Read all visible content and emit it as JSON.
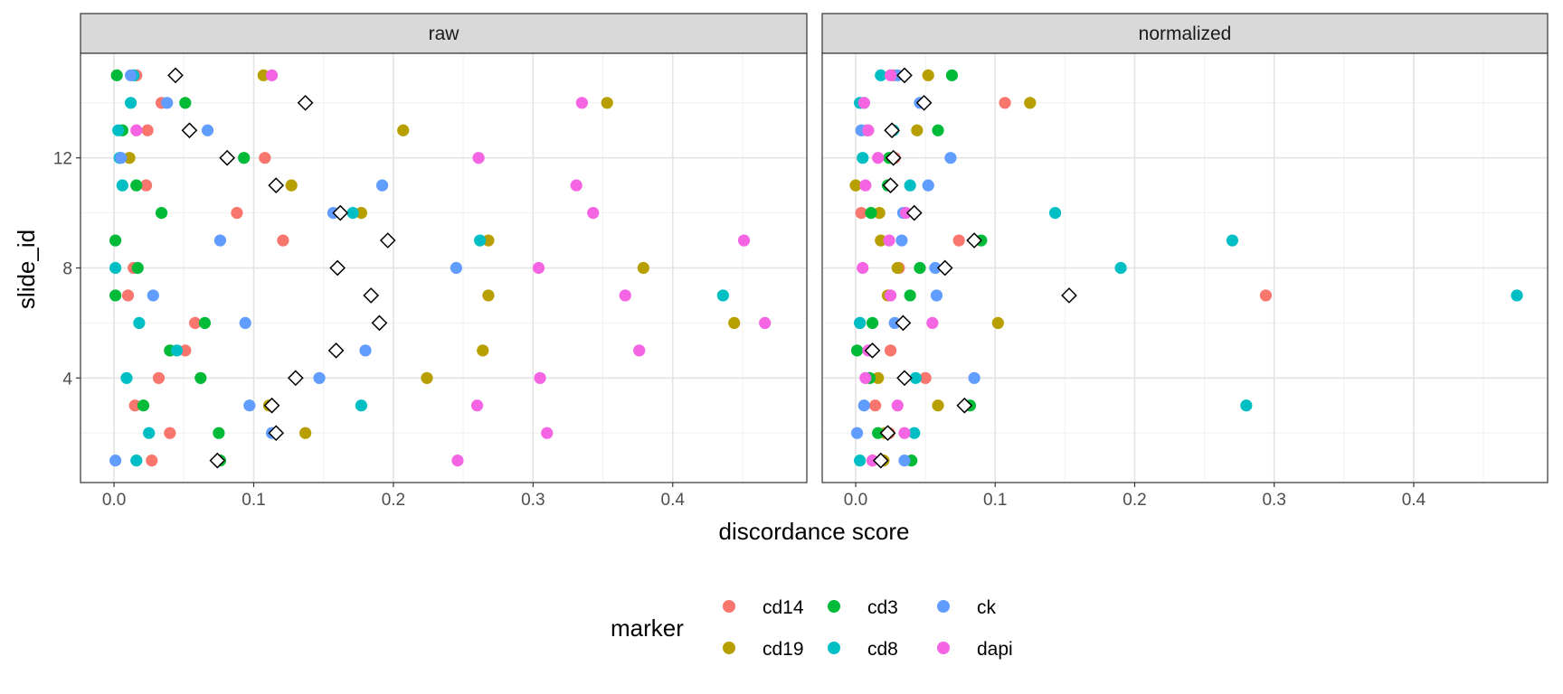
{
  "chart_data": {
    "type": "scatter",
    "facets": [
      {
        "title": "raw",
        "points": {
          "cd14": [
            [
              0.016,
              15
            ],
            [
              0.034,
              14
            ],
            [
              0.024,
              13
            ],
            [
              0.108,
              12
            ],
            [
              0.023,
              11
            ],
            [
              0.088,
              10
            ],
            [
              0.121,
              9
            ],
            [
              0.014,
              8
            ],
            [
              0.01,
              7
            ],
            [
              0.058,
              6
            ],
            [
              0.051,
              5
            ],
            [
              0.032,
              4
            ],
            [
              0.015,
              3
            ],
            [
              0.04,
              2
            ],
            [
              0.027,
              1
            ]
          ],
          "cd19": [
            [
              0.107,
              15
            ],
            [
              0.353,
              14
            ],
            [
              0.207,
              13
            ],
            [
              0.011,
              12
            ],
            [
              0.127,
              11
            ],
            [
              0.177,
              10
            ],
            [
              0.268,
              9
            ],
            [
              0.379,
              8
            ],
            [
              0.268,
              7
            ],
            [
              0.444,
              6
            ],
            [
              0.264,
              5
            ],
            [
              0.224,
              4
            ],
            [
              0.111,
              3
            ],
            [
              0.137,
              2
            ],
            [
              0.075,
              1
            ]
          ],
          "cd3": [
            [
              0.002,
              15
            ],
            [
              0.051,
              14
            ],
            [
              0.006,
              13
            ],
            [
              0.093,
              12
            ],
            [
              0.016,
              11
            ],
            [
              0.034,
              10
            ],
            [
              0.001,
              9
            ],
            [
              0.017,
              8
            ],
            [
              0.001,
              7
            ],
            [
              0.065,
              6
            ],
            [
              0.04,
              5
            ],
            [
              0.062,
              4
            ],
            [
              0.021,
              3
            ],
            [
              0.075,
              2
            ],
            [
              0.076,
              1
            ]
          ],
          "ck": [
            [
              0.012,
              15
            ],
            [
              0.038,
              14
            ],
            [
              0.067,
              13
            ],
            [
              0.005,
              12
            ],
            [
              0.192,
              11
            ],
            [
              0.157,
              10
            ],
            [
              0.076,
              9
            ],
            [
              0.245,
              8
            ],
            [
              0.028,
              7
            ],
            [
              0.094,
              6
            ],
            [
              0.18,
              5
            ],
            [
              0.147,
              4
            ],
            [
              0.097,
              3
            ],
            [
              0.113,
              2
            ],
            [
              0.001,
              1
            ]
          ],
          "cd8": [
            [
              0.014,
              15
            ],
            [
              0.012,
              14
            ],
            [
              0.003,
              13
            ],
            [
              0.004,
              12
            ],
            [
              0.006,
              11
            ],
            [
              0.171,
              10
            ],
            [
              0.262,
              9
            ],
            [
              0.001,
              8
            ],
            [
              0.436,
              7
            ],
            [
              0.018,
              6
            ],
            [
              0.045,
              5
            ],
            [
              0.009,
              4
            ],
            [
              0.177,
              3
            ],
            [
              0.025,
              2
            ],
            [
              0.016,
              1
            ]
          ],
          "dapi": [
            [
              0.113,
              15
            ],
            [
              0.335,
              14
            ],
            [
              0.016,
              13
            ],
            [
              0.261,
              12
            ],
            [
              0.331,
              11
            ],
            [
              0.343,
              10
            ],
            [
              0.451,
              9
            ],
            [
              0.304,
              8
            ],
            [
              0.366,
              7
            ],
            [
              0.466,
              6
            ],
            [
              0.376,
              5
            ],
            [
              0.305,
              4
            ],
            [
              0.26,
              3
            ],
            [
              0.31,
              2
            ],
            [
              0.246,
              1
            ]
          ],
          "summary": [
            [
              0.044,
              15
            ],
            [
              0.137,
              14
            ],
            [
              0.054,
              13
            ],
            [
              0.081,
              12
            ],
            [
              0.116,
              11
            ],
            [
              0.162,
              10
            ],
            [
              0.196,
              9
            ],
            [
              0.16,
              8
            ],
            [
              0.184,
              7
            ],
            [
              0.19,
              6
            ],
            [
              0.159,
              5
            ],
            [
              0.13,
              4
            ],
            [
              0.113,
              3
            ],
            [
              0.116,
              2
            ],
            [
              0.074,
              1
            ]
          ]
        }
      },
      {
        "title": "normalized",
        "points": {
          "cd14": [
            [
              0.027,
              15
            ],
            [
              0.107,
              14
            ],
            [
              0.008,
              13
            ],
            [
              0.028,
              12
            ],
            [
              0.025,
              11
            ],
            [
              0.004,
              10
            ],
            [
              0.074,
              9
            ],
            [
              0.031,
              8
            ],
            [
              0.294,
              7
            ],
            [
              0.003,
              6
            ],
            [
              0.025,
              5
            ],
            [
              0.05,
              4
            ],
            [
              0.014,
              3
            ],
            [
              0.024,
              2
            ],
            [
              0.012,
              1
            ]
          ],
          "cd19": [
            [
              0.052,
              15
            ],
            [
              0.125,
              14
            ],
            [
              0.044,
              13
            ],
            [
              0.026,
              12
            ],
            [
              0.0,
              11
            ],
            [
              0.017,
              10
            ],
            [
              0.018,
              9
            ],
            [
              0.03,
              8
            ],
            [
              0.023,
              7
            ],
            [
              0.102,
              6
            ],
            [
              0.01,
              5
            ],
            [
              0.016,
              4
            ],
            [
              0.059,
              3
            ],
            [
              0.021,
              2
            ],
            [
              0.02,
              1
            ]
          ],
          "cd3": [
            [
              0.069,
              15
            ],
            [
              0.006,
              14
            ],
            [
              0.059,
              13
            ],
            [
              0.024,
              12
            ],
            [
              0.023,
              11
            ],
            [
              0.011,
              10
            ],
            [
              0.09,
              9
            ],
            [
              0.046,
              8
            ],
            [
              0.039,
              7
            ],
            [
              0.012,
              6
            ],
            [
              0.001,
              5
            ],
            [
              0.01,
              4
            ],
            [
              0.082,
              3
            ],
            [
              0.016,
              2
            ],
            [
              0.04,
              1
            ]
          ],
          "ck": [
            [
              0.03,
              15
            ],
            [
              0.046,
              14
            ],
            [
              0.004,
              13
            ],
            [
              0.068,
              12
            ],
            [
              0.052,
              11
            ],
            [
              0.034,
              10
            ],
            [
              0.033,
              9
            ],
            [
              0.057,
              8
            ],
            [
              0.058,
              7
            ],
            [
              0.028,
              6
            ],
            [
              0.011,
              5
            ],
            [
              0.085,
              4
            ],
            [
              0.006,
              3
            ],
            [
              0.001,
              2
            ],
            [
              0.035,
              1
            ]
          ],
          "cd8": [
            [
              0.018,
              15
            ],
            [
              0.003,
              14
            ],
            [
              0.027,
              13
            ],
            [
              0.005,
              12
            ],
            [
              0.039,
              11
            ],
            [
              0.143,
              10
            ],
            [
              0.27,
              9
            ],
            [
              0.19,
              8
            ],
            [
              0.474,
              7
            ],
            [
              0.003,
              6
            ],
            [
              0.01,
              5
            ],
            [
              0.043,
              4
            ],
            [
              0.28,
              3
            ],
            [
              0.042,
              2
            ],
            [
              0.003,
              1
            ]
          ],
          "dapi": [
            [
              0.025,
              15
            ],
            [
              0.006,
              14
            ],
            [
              0.009,
              13
            ],
            [
              0.016,
              12
            ],
            [
              0.007,
              11
            ],
            [
              0.036,
              10
            ],
            [
              0.024,
              9
            ],
            [
              0.005,
              8
            ],
            [
              0.025,
              7
            ],
            [
              0.055,
              6
            ],
            [
              0.009,
              5
            ],
            [
              0.007,
              4
            ],
            [
              0.03,
              3
            ],
            [
              0.035,
              2
            ],
            [
              0.012,
              1
            ]
          ],
          "summary": [
            [
              0.035,
              15
            ],
            [
              0.049,
              14
            ],
            [
              0.026,
              13
            ],
            [
              0.027,
              12
            ],
            [
              0.025,
              11
            ],
            [
              0.042,
              10
            ],
            [
              0.085,
              9
            ],
            [
              0.064,
              8
            ],
            [
              0.153,
              7
            ],
            [
              0.034,
              6
            ],
            [
              0.012,
              5
            ],
            [
              0.035,
              4
            ],
            [
              0.078,
              3
            ],
            [
              0.023,
              2
            ],
            [
              0.018,
              1
            ]
          ]
        }
      }
    ],
    "xlabel": "discordance score",
    "ylabel": "slide_id",
    "xlim": [
      -0.024,
      0.496
    ],
    "ylim": [
      0.2,
      15.8
    ],
    "xticks": [
      0.0,
      0.1,
      0.2,
      0.3,
      0.4
    ],
    "xtick_labels": [
      "0.0",
      "0.1",
      "0.2",
      "0.3",
      "0.4"
    ],
    "yticks": [
      4,
      8,
      12
    ],
    "ytick_labels": [
      "4",
      "8",
      "12"
    ],
    "grid": true,
    "legend": {
      "title": "marker",
      "position": "bottom",
      "entries": [
        {
          "key": "cd14",
          "label": "cd14",
          "color": "#F8766D"
        },
        {
          "key": "cd19",
          "label": "cd19",
          "color": "#B79F00"
        },
        {
          "key": "cd3",
          "label": "cd3",
          "color": "#00BA38"
        },
        {
          "key": "cd8",
          "label": "cd8",
          "color": "#00BFC4"
        },
        {
          "key": "ck",
          "label": "ck",
          "color": "#619CFF"
        },
        {
          "key": "dapi",
          "label": "dapi",
          "color": "#F564E3"
        }
      ]
    }
  }
}
